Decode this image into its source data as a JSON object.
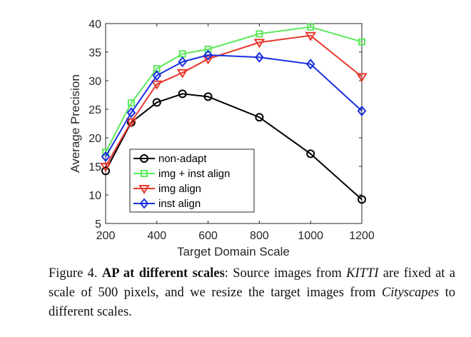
{
  "chart_data": {
    "type": "line",
    "title": "",
    "xlabel": "Target Domain Scale",
    "ylabel": "Average Precision",
    "xlim": [
      200,
      1200
    ],
    "ylim": [
      5,
      40
    ],
    "xticks": [
      200,
      400,
      600,
      800,
      1000,
      1200
    ],
    "yticks": [
      5,
      10,
      15,
      20,
      25,
      30,
      35,
      40
    ],
    "grid": false,
    "legend_position": "bottom-left",
    "x": [
      200,
      300,
      400,
      500,
      600,
      800,
      1000,
      1200
    ],
    "series": [
      {
        "name": "non-adapt",
        "color": "#000000",
        "marker": "circle",
        "values": [
          14.2,
          22.7,
          26.2,
          27.7,
          27.2,
          23.6,
          17.2,
          9.2
        ]
      },
      {
        "name": "img + inst align",
        "color": "#5ee85e",
        "marker": "square",
        "values": [
          17.5,
          26.1,
          32.1,
          34.7,
          35.5,
          38.2,
          39.4,
          36.8
        ]
      },
      {
        "name": "img align",
        "color": "#e8382e",
        "marker": "triangle-down",
        "values": [
          15.0,
          22.8,
          29.4,
          31.4,
          33.8,
          36.7,
          37.9,
          30.7
        ]
      },
      {
        "name": "inst align",
        "color": "#1a2fe0",
        "marker": "diamond",
        "values": [
          16.7,
          24.4,
          30.9,
          33.3,
          34.5,
          34.1,
          32.9,
          24.7
        ]
      }
    ]
  },
  "caption": {
    "label": "Figure 4.",
    "title": "AP at different scales",
    "text_1": ": Source images from ",
    "kitti": "KITTI",
    "text_2": " are fixed at a scale of 500 pixels, and we resize the target images from ",
    "cityscapes": "Cityscapes",
    "text_3": " to different scales."
  }
}
